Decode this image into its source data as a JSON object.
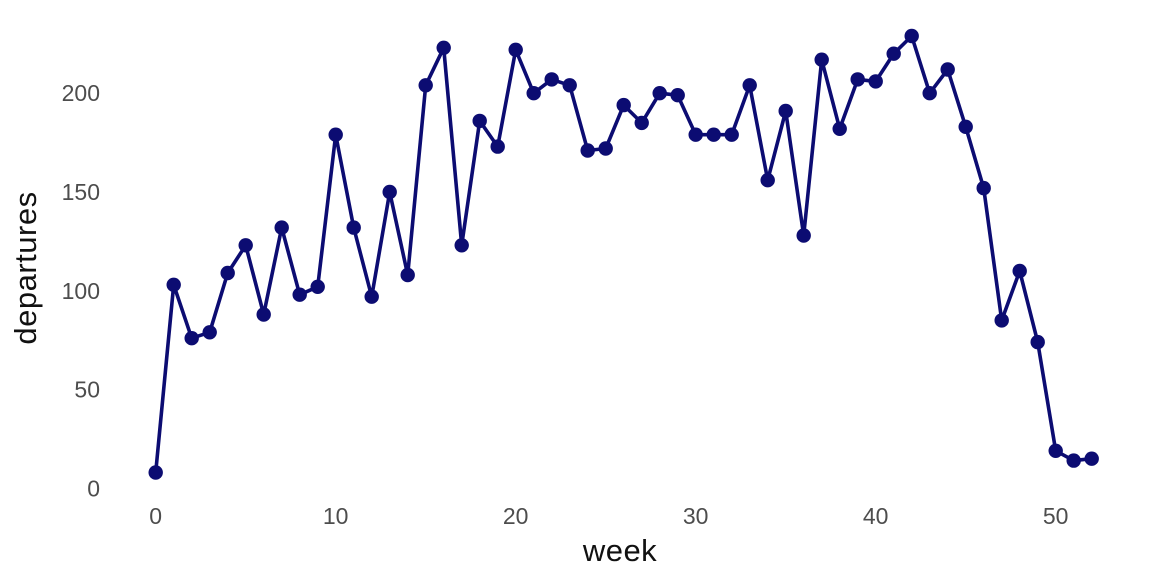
{
  "chart_data": {
    "type": "line",
    "title": "",
    "xlabel": "week",
    "ylabel": "departures",
    "x": [
      0,
      1,
      2,
      3,
      4,
      5,
      6,
      7,
      8,
      9,
      10,
      11,
      12,
      13,
      14,
      15,
      16,
      17,
      18,
      19,
      20,
      21,
      22,
      23,
      24,
      25,
      26,
      27,
      28,
      29,
      30,
      31,
      32,
      33,
      34,
      35,
      36,
      37,
      38,
      39,
      40,
      41,
      42,
      43,
      44,
      45,
      46,
      47,
      48,
      49,
      50,
      51,
      52
    ],
    "values": [
      8,
      103,
      76,
      79,
      109,
      123,
      88,
      132,
      98,
      102,
      179,
      132,
      97,
      150,
      108,
      204,
      223,
      123,
      186,
      173,
      222,
      200,
      207,
      204,
      171,
      172,
      194,
      185,
      200,
      199,
      179,
      179,
      179,
      204,
      156,
      191,
      128,
      217,
      182,
      207,
      206,
      220,
      229,
      200,
      212,
      183,
      152,
      85,
      110,
      74,
      19,
      14,
      15
    ],
    "x_ticks": [
      0,
      10,
      20,
      30,
      40,
      50
    ],
    "y_ticks": [
      0,
      50,
      100,
      150,
      200
    ],
    "xlim": [
      0,
      52
    ],
    "ylim": [
      0,
      235
    ],
    "grid": false,
    "legend": false,
    "marker": "circle",
    "colors": {
      "line": "#0c0c72",
      "marker": "#0c0c72",
      "tick_label": "#4d4d4d",
      "axis_title": "#111111",
      "background": "#ffffff"
    }
  }
}
